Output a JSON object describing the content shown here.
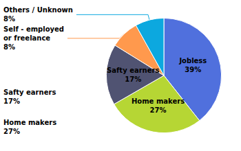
{
  "chart_data": {
    "type": "pie",
    "categories": [
      "Jobless",
      "Home makers",
      "Safty earners",
      "Self - employed\nor freelance",
      "Others / Unknown"
    ],
    "values": [
      39,
      27,
      17,
      8,
      8
    ],
    "value_labels": [
      "39%",
      "27%",
      "17%",
      "8%",
      "8%"
    ],
    "data_labels": true,
    "annotations": [
      "Safty earners\n17%",
      "Home makers\n27%"
    ]
  }
}
